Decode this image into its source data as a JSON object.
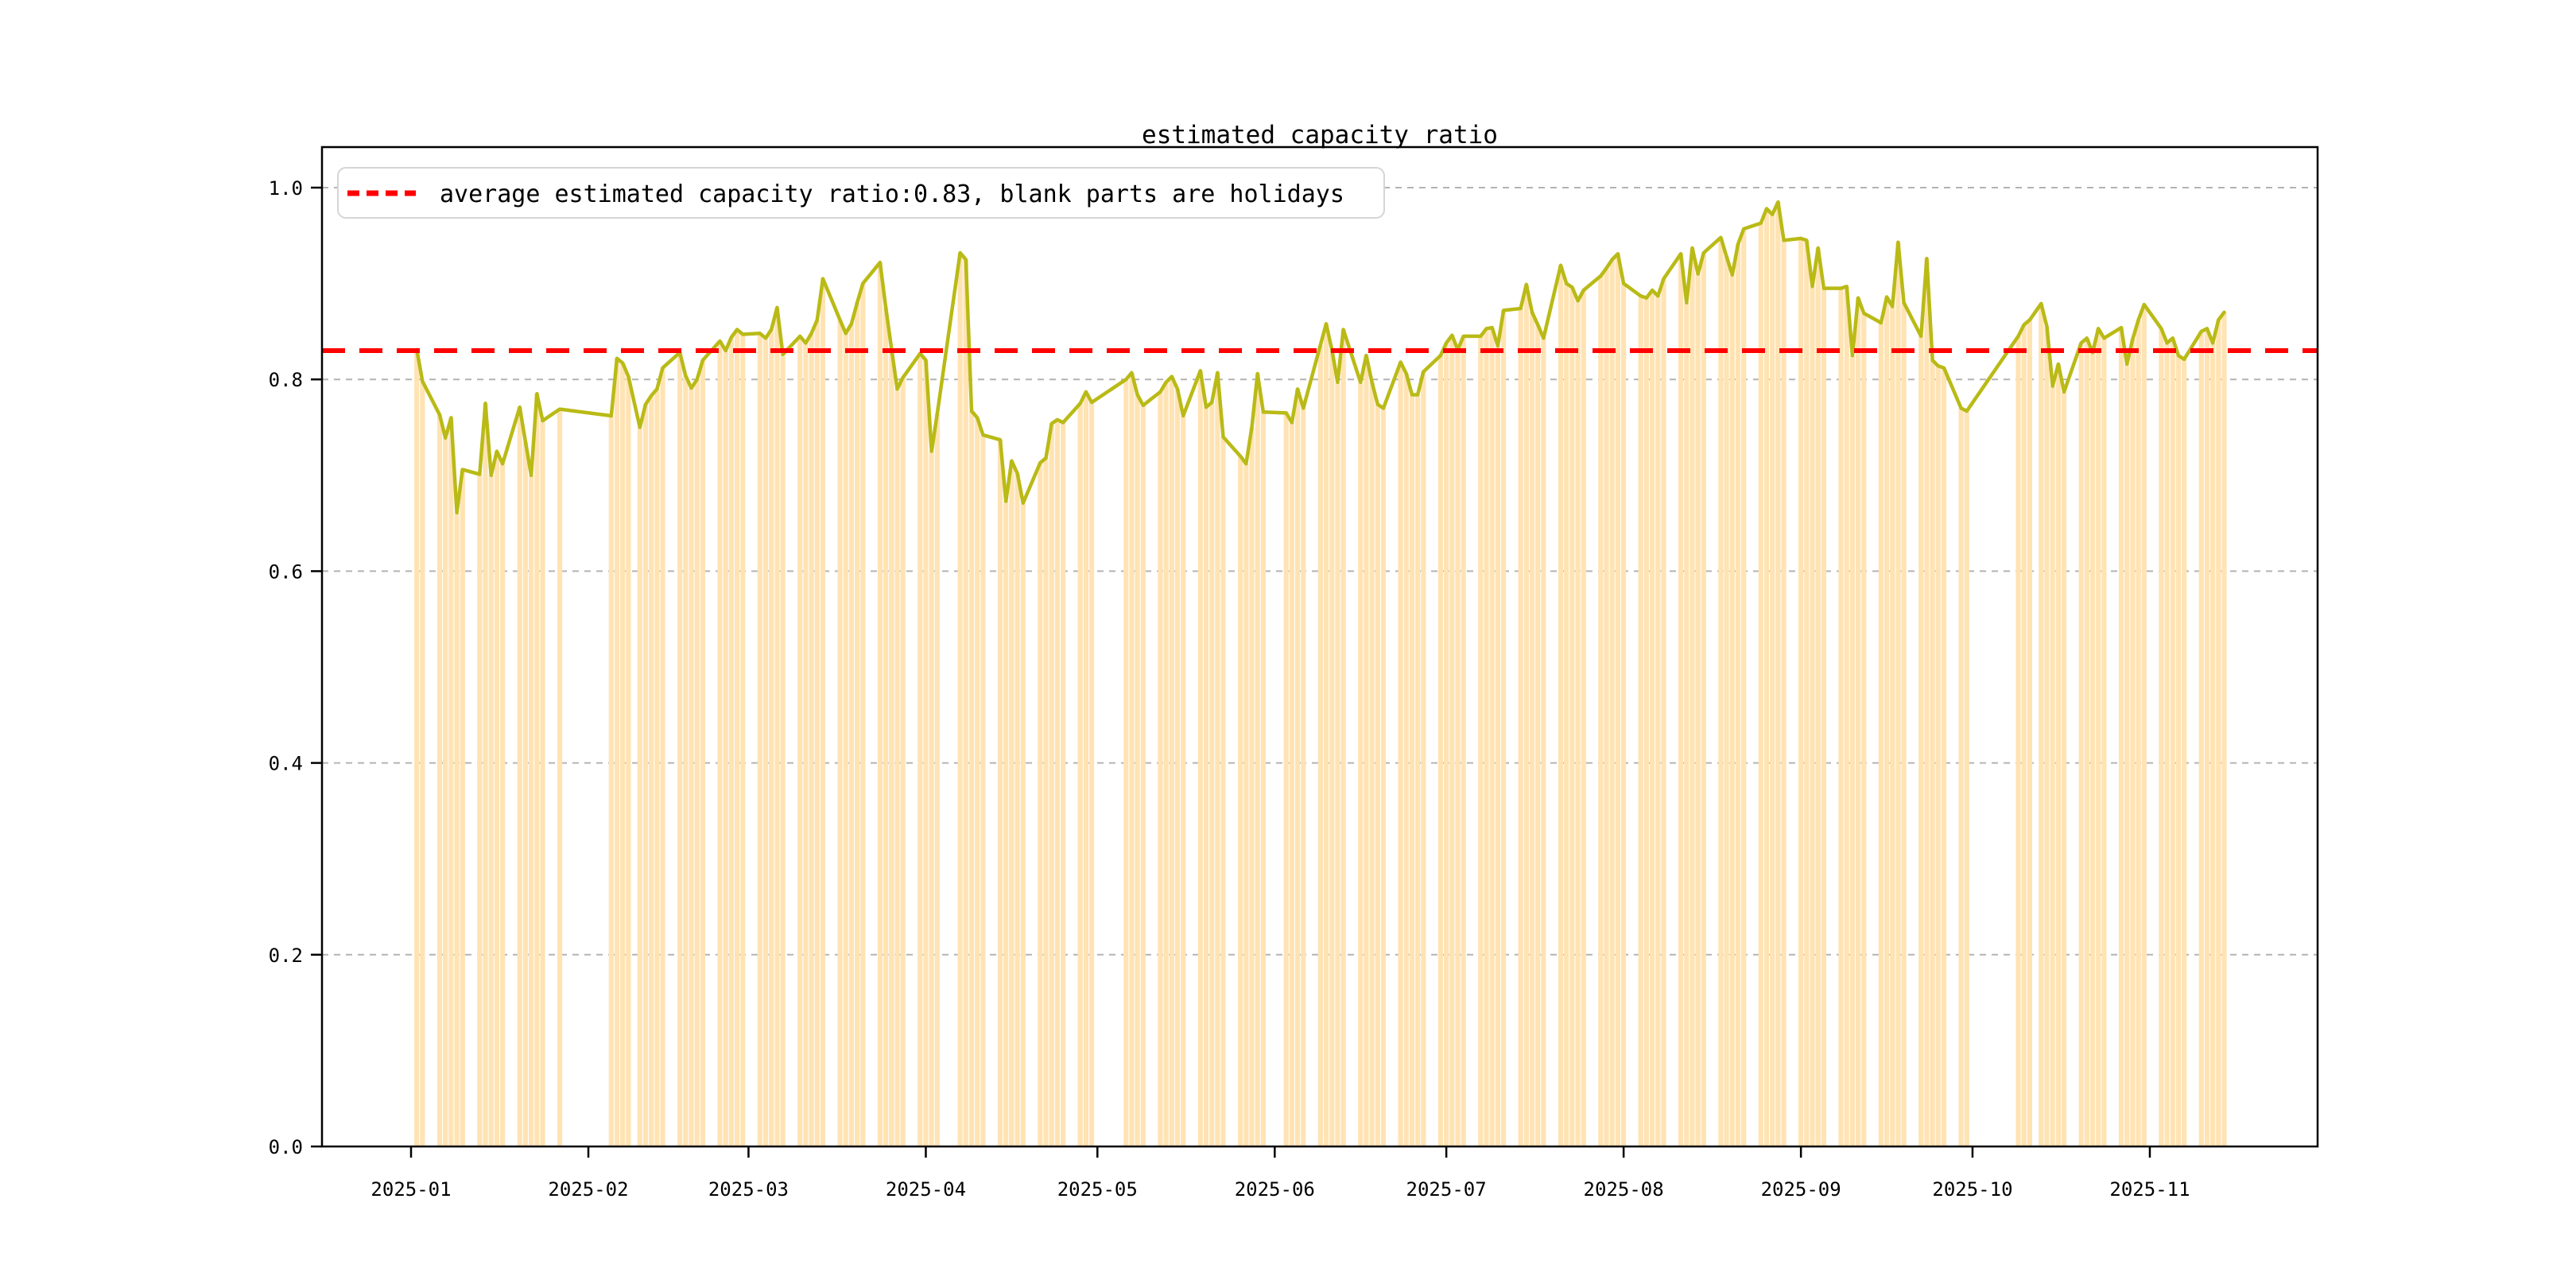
{
  "title": "estimated capacity ratio",
  "legend": {
    "label": "average estimated capacity ratio:0.83, blank parts are holidays",
    "marker": "red-dashed-line"
  },
  "chart_data": {
    "type": "bar",
    "subtype": "daily bars with line overlay",
    "title": "estimated capacity ratio",
    "xlabel": "",
    "ylabel": "",
    "ylim": [
      0.0,
      1.0
    ],
    "yticks": [
      "0.0",
      "0.2",
      "0.4",
      "0.6",
      "0.8",
      "1.0"
    ],
    "xticks": [
      "2025-01",
      "2025-02",
      "2025-03",
      "2025-04",
      "2025-05",
      "2025-06",
      "2025-07",
      "2025-08",
      "2025-09",
      "2025-10",
      "2025-11"
    ],
    "xlim": [
      "2024-12-17",
      "2025-11-29"
    ],
    "grid": "horizontal dashed",
    "legend_position": "upper left",
    "average_line": {
      "value": 0.83,
      "color": "#ff0000",
      "style": "dashed"
    },
    "note": "blank parts are holidays (weekends and Chinese public holidays have no bars; line connects across gaps)",
    "colors": {
      "bar": "#ffe3b3",
      "line": "#b9ba16",
      "average": "#ff0000",
      "grid": "#b3b3b3",
      "spine": "#000000"
    },
    "series": {
      "name": "estimated capacity ratio (daily, workdays only)",
      "dates": [
        "2025-01-02",
        "2025-01-03",
        "2025-01-06",
        "2025-01-07",
        "2025-01-08",
        "2025-01-09",
        "2025-01-10",
        "2025-01-13",
        "2025-01-14",
        "2025-01-15",
        "2025-01-16",
        "2025-01-17",
        "2025-01-20",
        "2025-01-21",
        "2025-01-22",
        "2025-01-23",
        "2025-01-24",
        "2025-01-27",
        "2025-02-05",
        "2025-02-06",
        "2025-02-07",
        "2025-02-08",
        "2025-02-10",
        "2025-02-11",
        "2025-02-12",
        "2025-02-13",
        "2025-02-14",
        "2025-02-17",
        "2025-02-18",
        "2025-02-19",
        "2025-02-20",
        "2025-02-21",
        "2025-02-24",
        "2025-02-25",
        "2025-02-26",
        "2025-02-27",
        "2025-02-28",
        "2025-03-03",
        "2025-03-04",
        "2025-03-05",
        "2025-03-06",
        "2025-03-07",
        "2025-03-10",
        "2025-03-11",
        "2025-03-12",
        "2025-03-13",
        "2025-03-14",
        "2025-03-17",
        "2025-03-18",
        "2025-03-19",
        "2025-03-20",
        "2025-03-21",
        "2025-03-24",
        "2025-03-25",
        "2025-03-26",
        "2025-03-27",
        "2025-03-28",
        "2025-03-31",
        "2025-04-01",
        "2025-04-02",
        "2025-04-03",
        "2025-04-07",
        "2025-04-08",
        "2025-04-09",
        "2025-04-10",
        "2025-04-11",
        "2025-04-14",
        "2025-04-15",
        "2025-04-16",
        "2025-04-17",
        "2025-04-18",
        "2025-04-21",
        "2025-04-22",
        "2025-04-23",
        "2025-04-24",
        "2025-04-25",
        "2025-04-28",
        "2025-04-29",
        "2025-04-30",
        "2025-05-06",
        "2025-05-07",
        "2025-05-08",
        "2025-05-09",
        "2025-05-12",
        "2025-05-13",
        "2025-05-14",
        "2025-05-15",
        "2025-05-16",
        "2025-05-19",
        "2025-05-20",
        "2025-05-21",
        "2025-05-22",
        "2025-05-23",
        "2025-05-26",
        "2025-05-27",
        "2025-05-28",
        "2025-05-29",
        "2025-05-30",
        "2025-06-03",
        "2025-06-04",
        "2025-06-05",
        "2025-06-06",
        "2025-06-09",
        "2025-06-10",
        "2025-06-11",
        "2025-06-12",
        "2025-06-13",
        "2025-06-16",
        "2025-06-17",
        "2025-06-18",
        "2025-06-19",
        "2025-06-20",
        "2025-06-23",
        "2025-06-24",
        "2025-06-25",
        "2025-06-26",
        "2025-06-27",
        "2025-06-30",
        "2025-07-01",
        "2025-07-02",
        "2025-07-03",
        "2025-07-04",
        "2025-07-07",
        "2025-07-08",
        "2025-07-09",
        "2025-07-10",
        "2025-07-11",
        "2025-07-14",
        "2025-07-15",
        "2025-07-16",
        "2025-07-17",
        "2025-07-18",
        "2025-07-21",
        "2025-07-22",
        "2025-07-23",
        "2025-07-24",
        "2025-07-25",
        "2025-07-28",
        "2025-07-29",
        "2025-07-30",
        "2025-07-31",
        "2025-08-01",
        "2025-08-04",
        "2025-08-05",
        "2025-08-06",
        "2025-08-07",
        "2025-08-08",
        "2025-08-11",
        "2025-08-12",
        "2025-08-13",
        "2025-08-14",
        "2025-08-15",
        "2025-08-18",
        "2025-08-19",
        "2025-08-20",
        "2025-08-21",
        "2025-08-22",
        "2025-08-25",
        "2025-08-26",
        "2025-08-27",
        "2025-08-28",
        "2025-08-29",
        "2025-09-01",
        "2025-09-02",
        "2025-09-03",
        "2025-09-04",
        "2025-09-05",
        "2025-09-08",
        "2025-09-09",
        "2025-09-10",
        "2025-09-11",
        "2025-09-12",
        "2025-09-15",
        "2025-09-16",
        "2025-09-17",
        "2025-09-18",
        "2025-09-19",
        "2025-09-22",
        "2025-09-23",
        "2025-09-24",
        "2025-09-25",
        "2025-09-26",
        "2025-09-29",
        "2025-09-30",
        "2025-10-09",
        "2025-10-10",
        "2025-10-11",
        "2025-10-13",
        "2025-10-14",
        "2025-10-15",
        "2025-10-16",
        "2025-10-17",
        "2025-10-20",
        "2025-10-21",
        "2025-10-22",
        "2025-10-23",
        "2025-10-24",
        "2025-10-27",
        "2025-10-28",
        "2025-10-29",
        "2025-10-30",
        "2025-10-31",
        "2025-11-03",
        "2025-11-04",
        "2025-11-05",
        "2025-11-06",
        "2025-11-07",
        "2025-11-10",
        "2025-11-11",
        "2025-11-12",
        "2025-11-13",
        "2025-11-14"
      ],
      "values": [
        0.831,
        0.798,
        0.763,
        0.739,
        0.76,
        0.661,
        0.706,
        0.701,
        0.775,
        0.7,
        0.725,
        0.712,
        0.771,
        0.735,
        0.7,
        0.785,
        0.757,
        0.769,
        0.762,
        0.822,
        0.817,
        0.803,
        0.75,
        0.774,
        0.783,
        0.79,
        0.812,
        0.828,
        0.804,
        0.791,
        0.8,
        0.82,
        0.84,
        0.83,
        0.844,
        0.852,
        0.847,
        0.848,
        0.843,
        0.852,
        0.875,
        0.826,
        0.845,
        0.838,
        0.848,
        0.862,
        0.905,
        0.862,
        0.848,
        0.858,
        0.88,
        0.9,
        0.922,
        0.875,
        0.832,
        0.79,
        0.802,
        0.827,
        0.82,
        0.725,
        0.764,
        0.932,
        0.925,
        0.767,
        0.76,
        0.742,
        0.737,
        0.673,
        0.715,
        0.702,
        0.671,
        0.713,
        0.718,
        0.754,
        0.758,
        0.755,
        0.775,
        0.787,
        0.776,
        0.8,
        0.807,
        0.784,
        0.773,
        0.787,
        0.797,
        0.803,
        0.79,
        0.762,
        0.809,
        0.771,
        0.776,
        0.807,
        0.74,
        0.72,
        0.712,
        0.75,
        0.806,
        0.766,
        0.765,
        0.755,
        0.79,
        0.77,
        0.836,
        0.858,
        0.831,
        0.797,
        0.852,
        0.797,
        0.825,
        0.797,
        0.774,
        0.77,
        0.818,
        0.806,
        0.784,
        0.784,
        0.808,
        0.825,
        0.838,
        0.846,
        0.831,
        0.845,
        0.845,
        0.853,
        0.854,
        0.835,
        0.872,
        0.874,
        0.899,
        0.87,
        0.857,
        0.843,
        0.919,
        0.9,
        0.896,
        0.882,
        0.893,
        0.908,
        0.916,
        0.925,
        0.931,
        0.9,
        0.887,
        0.885,
        0.893,
        0.887,
        0.905,
        0.931,
        0.88,
        0.937,
        0.91,
        0.932,
        0.948,
        0.928,
        0.909,
        0.941,
        0.957,
        0.963,
        0.978,
        0.972,
        0.985,
        0.945,
        0.947,
        0.945,
        0.897,
        0.937,
        0.895,
        0.895,
        0.897,
        0.825,
        0.885,
        0.869,
        0.859,
        0.886,
        0.876,
        0.943,
        0.88,
        0.845,
        0.926,
        0.82,
        0.814,
        0.812,
        0.77,
        0.767,
        0.845,
        0.857,
        0.862,
        0.879,
        0.855,
        0.793,
        0.816,
        0.787,
        0.838,
        0.843,
        0.828,
        0.853,
        0.843,
        0.854,
        0.816,
        0.842,
        0.862,
        0.878,
        0.853,
        0.838,
        0.843,
        0.825,
        0.821,
        0.85,
        0.853,
        0.838,
        0.862,
        0.87
      ]
    },
    "holidays_gaps": [
      "2025-01-01",
      "2025-01-28 to 2025-02-04",
      "2025-04-04",
      "2025-05-01 to 2025-05-05",
      "2025-06-02",
      "2025-10-01 to 2025-10-08"
    ]
  }
}
